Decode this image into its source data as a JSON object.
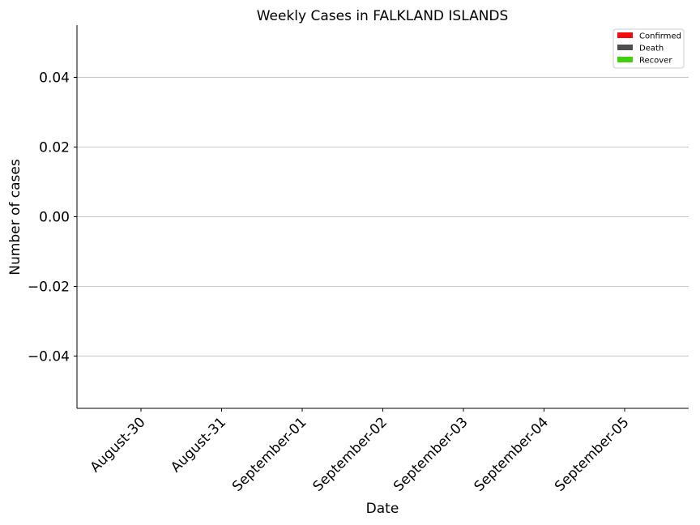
{
  "chart_data": {
    "type": "bar",
    "title": "Weekly Cases in FALKLAND ISLANDS",
    "xlabel": "Date",
    "ylabel": "Number of cases",
    "categories": [
      "August-30",
      "August-31",
      "September-01",
      "September-02",
      "September-03",
      "September-04",
      "September-05"
    ],
    "series": [
      {
        "name": "Confirmed",
        "color": "#f20d0d",
        "values": [
          0,
          0,
          0,
          0,
          0,
          0,
          0
        ]
      },
      {
        "name": "Death",
        "color": "#4d4d4d",
        "values": [
          0,
          0,
          0,
          0,
          0,
          0,
          0
        ]
      },
      {
        "name": "Recover",
        "color": "#40d10d",
        "values": [
          0,
          0,
          0,
          0,
          0,
          0,
          0
        ]
      }
    ],
    "ylim": [
      -0.055,
      0.055
    ],
    "yticks": [
      -0.04,
      -0.02,
      0.0,
      0.02,
      0.04
    ],
    "ytick_labels": [
      "−0.04",
      "−0.02",
      "0.00",
      "0.02",
      "0.04"
    ],
    "grid": "horizontal",
    "legend_position": "top-right"
  }
}
